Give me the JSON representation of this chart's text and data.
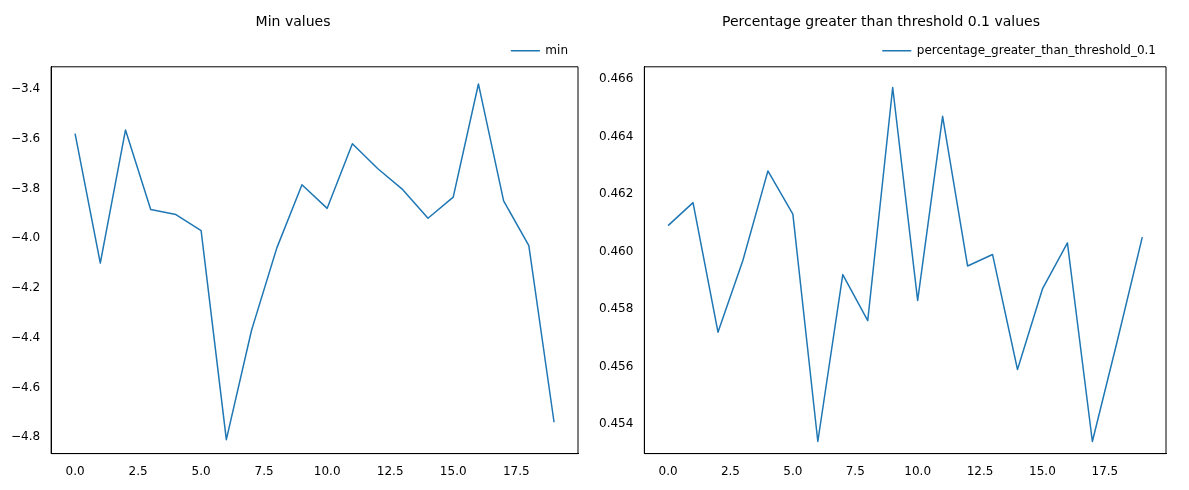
{
  "chart_data": [
    {
      "type": "line",
      "title": "Min values",
      "x": [
        0,
        1,
        2,
        3,
        4,
        5,
        6,
        7,
        8,
        9,
        10,
        11,
        12,
        13,
        14,
        15,
        16,
        17,
        18,
        19
      ],
      "series": [
        {
          "name": "min",
          "color": "#1f77b4",
          "values": [
            -3.58,
            -4.1,
            -3.565,
            -3.885,
            -3.905,
            -3.97,
            -4.81,
            -4.37,
            -4.04,
            -3.785,
            -3.88,
            -3.62,
            -3.72,
            -3.805,
            -3.92,
            -3.835,
            -3.38,
            -3.85,
            -4.03,
            -4.74
          ]
        }
      ],
      "xlim": [
        -0.95,
        19.95
      ],
      "ylim": [
        -4.866,
        -3.311
      ],
      "xticks": [
        {
          "value": 0,
          "label": "0.0"
        },
        {
          "value": 2.5,
          "label": "2.5"
        },
        {
          "value": 5,
          "label": "5.0"
        },
        {
          "value": 7.5,
          "label": "7.5"
        },
        {
          "value": 10,
          "label": "10.0"
        },
        {
          "value": 12.5,
          "label": "12.5"
        },
        {
          "value": 15,
          "label": "15.0"
        },
        {
          "value": 17.5,
          "label": "17.5"
        }
      ],
      "yticks": [
        {
          "value": -4.8,
          "label": "−4.8"
        },
        {
          "value": -4.6,
          "label": "−4.6"
        },
        {
          "value": -4.4,
          "label": "−4.4"
        },
        {
          "value": -4.2,
          "label": "−4.2"
        },
        {
          "value": -4.0,
          "label": "−4.0"
        },
        {
          "value": -3.8,
          "label": "−3.8"
        },
        {
          "value": -3.6,
          "label": "−3.6"
        },
        {
          "value": -3.4,
          "label": "−3.4"
        }
      ],
      "legend": "top right",
      "grid": false
    },
    {
      "type": "line",
      "title": "Percentage greater than threshold 0.1 values",
      "x": [
        0,
        1,
        2,
        3,
        4,
        5,
        6,
        7,
        8,
        9,
        10,
        11,
        12,
        13,
        14,
        15,
        16,
        17,
        18,
        19
      ],
      "series": [
        {
          "name": "percentage_greater_than_threshold_0.1",
          "color": "#1f77b4",
          "values": [
            0.4609,
            0.4617,
            0.4572,
            0.4597,
            0.4628,
            0.4613,
            0.4534,
            0.4592,
            0.4576,
            0.4657,
            0.4583,
            0.4647,
            0.4595,
            0.4599,
            0.4559,
            0.4587,
            0.4603,
            0.4534,
            0.4569,
            0.4605
          ]
        }
      ],
      "xlim": [
        -0.95,
        19.95
      ],
      "ylim": [
        0.45298,
        0.46642
      ],
      "xticks": [
        {
          "value": 0,
          "label": "0.0"
        },
        {
          "value": 2.5,
          "label": "2.5"
        },
        {
          "value": 5,
          "label": "5.0"
        },
        {
          "value": 7.5,
          "label": "7.5"
        },
        {
          "value": 10,
          "label": "10.0"
        },
        {
          "value": 12.5,
          "label": "12.5"
        },
        {
          "value": 15,
          "label": "15.0"
        },
        {
          "value": 17.5,
          "label": "17.5"
        }
      ],
      "yticks": [
        0.454,
        0.456,
        0.458,
        {
          "value": 0.46,
          "label": "0.460"
        },
        0.462,
        0.464,
        0.466
      ],
      "legend": "top right",
      "grid": false
    }
  ]
}
